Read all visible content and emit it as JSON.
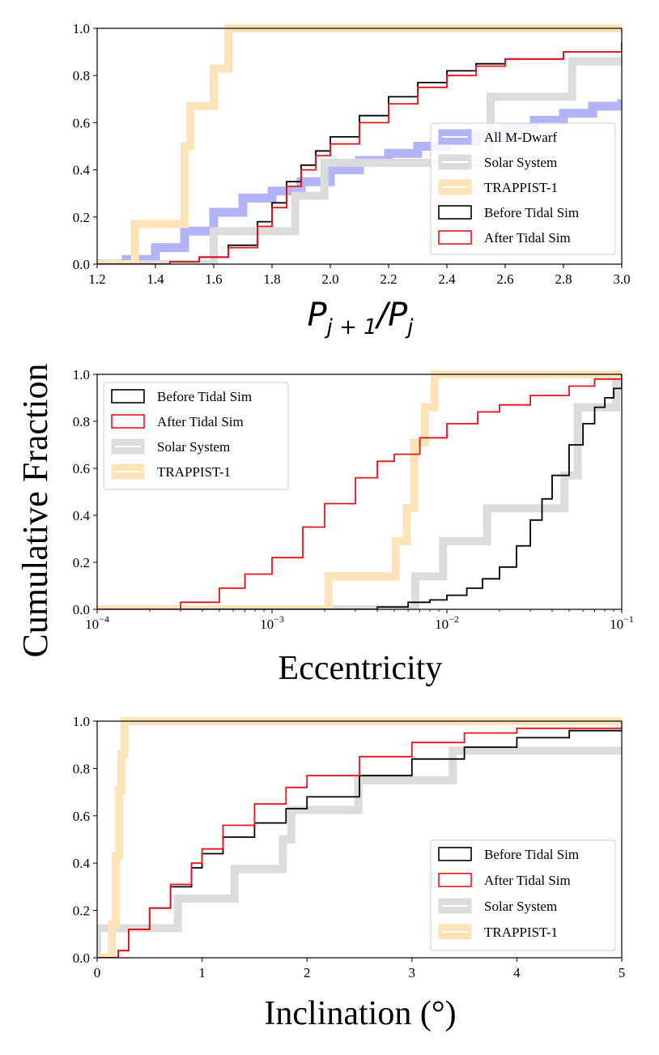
{
  "figure": {
    "ylabel": "Cumulative Fraction"
  },
  "colors": {
    "before": "#000000",
    "after": "#e8141c",
    "solar": "#dcdcdc",
    "trappist": "#fde4b8",
    "mdwarf": "#b3b3f7"
  },
  "chart_data": [
    {
      "type": "step_cdf",
      "title": "",
      "xlabel_parts": {
        "p": "P",
        "sub1": "j + 1",
        "slash": "/",
        "sub2": "j"
      },
      "xscale": "linear",
      "xlim": [
        1.2,
        3.0
      ],
      "ylim": [
        0,
        1.0
      ],
      "xticks": [
        1.2,
        1.4,
        1.6,
        1.8,
        2.0,
        2.2,
        2.4,
        2.6,
        2.8,
        3.0
      ],
      "xtick_labels": [
        "1.2",
        "1.4",
        "1.6",
        "1.8",
        "2.0",
        "2.2",
        "2.4",
        "2.6",
        "2.8",
        "3.0"
      ],
      "yticks": [
        0,
        0.2,
        0.4,
        0.6,
        0.8,
        1.0
      ],
      "ytick_labels": [
        "0.0",
        "0.2",
        "0.4",
        "0.6",
        "0.8",
        "1.0"
      ],
      "legend_position": "lower-right",
      "legend": [
        {
          "key": "mdwarf",
          "label": "All M-Dwarf"
        },
        {
          "key": "solar",
          "label": "Solar System"
        },
        {
          "key": "trappist",
          "label": "TRAPPIST-1"
        },
        {
          "key": "before",
          "label": "Before Tidal Sim"
        },
        {
          "key": "after",
          "label": "After Tidal Sim"
        }
      ],
      "series": [
        {
          "key": "mdwarf",
          "name": "All M-Dwarf",
          "style": "band",
          "x": [
            1.2,
            1.3,
            1.4,
            1.5,
            1.6,
            1.7,
            1.8,
            1.9,
            2.0,
            2.1,
            2.2,
            2.3,
            2.4,
            2.5,
            2.6,
            2.7,
            2.8,
            2.9,
            3.0
          ],
          "y": [
            0.0,
            0.02,
            0.07,
            0.14,
            0.22,
            0.28,
            0.31,
            0.35,
            0.4,
            0.44,
            0.47,
            0.5,
            0.52,
            0.55,
            0.58,
            0.61,
            0.64,
            0.67,
            0.7
          ]
        },
        {
          "key": "solar",
          "name": "Solar System",
          "style": "thick",
          "x": [
            1.2,
            1.6,
            1.6,
            1.88,
            1.88,
            1.98,
            1.98,
            2.55,
            2.55,
            2.83,
            2.83,
            3.0
          ],
          "y": [
            0.0,
            0.0,
            0.14,
            0.14,
            0.29,
            0.29,
            0.43,
            0.43,
            0.71,
            0.71,
            0.86,
            0.86
          ]
        },
        {
          "key": "trappist",
          "name": "TRAPPIST-1",
          "style": "thick",
          "x": [
            1.2,
            1.33,
            1.33,
            1.5,
            1.5,
            1.52,
            1.52,
            1.6,
            1.6,
            1.65,
            1.65,
            3.0
          ],
          "y": [
            0.0,
            0.0,
            0.17,
            0.17,
            0.5,
            0.5,
            0.67,
            0.67,
            0.83,
            0.83,
            1.0,
            1.0
          ]
        },
        {
          "key": "before",
          "name": "Before Tidal Sim",
          "style": "thin",
          "x": [
            1.2,
            1.45,
            1.55,
            1.65,
            1.75,
            1.8,
            1.85,
            1.9,
            1.95,
            2.0,
            2.1,
            2.2,
            2.3,
            2.4,
            2.5,
            2.6,
            2.8,
            3.0
          ],
          "y": [
            0.0,
            0.01,
            0.03,
            0.08,
            0.18,
            0.26,
            0.35,
            0.42,
            0.48,
            0.54,
            0.63,
            0.71,
            0.77,
            0.82,
            0.85,
            0.87,
            0.9,
            0.94
          ]
        },
        {
          "key": "after",
          "name": "After Tidal Sim",
          "style": "thin",
          "x": [
            1.2,
            1.45,
            1.55,
            1.65,
            1.75,
            1.8,
            1.85,
            1.9,
            1.95,
            2.0,
            2.1,
            2.2,
            2.3,
            2.4,
            2.5,
            2.6,
            2.8,
            3.0
          ],
          "y": [
            0.0,
            0.01,
            0.03,
            0.07,
            0.16,
            0.24,
            0.33,
            0.4,
            0.46,
            0.51,
            0.6,
            0.68,
            0.75,
            0.8,
            0.84,
            0.87,
            0.9,
            0.93
          ]
        }
      ]
    },
    {
      "type": "step_cdf",
      "title": "",
      "xlabel": "Eccentricity",
      "xscale": "log",
      "xlim": [
        0.0001,
        0.1
      ],
      "ylim": [
        0,
        1.0
      ],
      "xticks": [
        0.0001,
        0.001,
        0.01,
        0.1
      ],
      "xtick_labels": [
        {
          "base": "10",
          "exp": "−4"
        },
        {
          "base": "10",
          "exp": "−3"
        },
        {
          "base": "10",
          "exp": "−2"
        },
        {
          "base": "10",
          "exp": "−1"
        }
      ],
      "yticks": [
        0,
        0.2,
        0.4,
        0.6,
        0.8,
        1.0
      ],
      "ytick_labels": [
        "0.0",
        "0.2",
        "0.4",
        "0.6",
        "0.8",
        "1.0"
      ],
      "legend_position": "upper-left",
      "legend": [
        {
          "key": "before",
          "label": "Before Tidal Sim"
        },
        {
          "key": "after",
          "label": "After Tidal Sim"
        },
        {
          "key": "solar",
          "label": "Solar System"
        },
        {
          "key": "trappist",
          "label": "TRAPPIST-1"
        }
      ],
      "series": [
        {
          "key": "solar",
          "name": "Solar System",
          "style": "thick",
          "x": [
            0.0001,
            0.0066,
            0.0066,
            0.0095,
            0.0095,
            0.017,
            0.017,
            0.047,
            0.047,
            0.056,
            0.056,
            0.093,
            0.093,
            0.1
          ],
          "y": [
            0.0,
            0.0,
            0.14,
            0.14,
            0.29,
            0.29,
            0.43,
            0.43,
            0.57,
            0.57,
            0.86,
            0.86,
            1.0,
            1.0
          ]
        },
        {
          "key": "trappist",
          "name": "TRAPPIST-1",
          "style": "thick",
          "x": [
            0.0001,
            0.0021,
            0.0021,
            0.0051,
            0.0051,
            0.0059,
            0.0059,
            0.0065,
            0.0065,
            0.0075,
            0.0075,
            0.0085,
            0.0085,
            0.1
          ],
          "y": [
            0.0,
            0.0,
            0.14,
            0.14,
            0.29,
            0.29,
            0.43,
            0.43,
            0.71,
            0.71,
            0.86,
            0.86,
            1.0,
            1.0
          ]
        },
        {
          "key": "before",
          "name": "Before Tidal Sim",
          "style": "thin",
          "x": [
            0.0001,
            0.002,
            0.004,
            0.006,
            0.008,
            0.01,
            0.013,
            0.016,
            0.02,
            0.025,
            0.03,
            0.035,
            0.04,
            0.05,
            0.06,
            0.07,
            0.08,
            0.09,
            0.1
          ],
          "y": [
            0.0,
            0.0,
            0.01,
            0.03,
            0.04,
            0.06,
            0.09,
            0.13,
            0.18,
            0.27,
            0.38,
            0.47,
            0.57,
            0.7,
            0.79,
            0.86,
            0.9,
            0.94,
            0.98
          ]
        },
        {
          "key": "after",
          "name": "After Tidal Sim",
          "style": "thin",
          "x": [
            0.0001,
            0.0002,
            0.0003,
            0.0005,
            0.0007,
            0.001,
            0.0015,
            0.002,
            0.003,
            0.004,
            0.005,
            0.007,
            0.01,
            0.015,
            0.02,
            0.03,
            0.05,
            0.07,
            0.1
          ],
          "y": [
            0.0,
            0.0,
            0.03,
            0.09,
            0.15,
            0.22,
            0.35,
            0.45,
            0.56,
            0.63,
            0.66,
            0.73,
            0.79,
            0.84,
            0.87,
            0.91,
            0.95,
            0.98,
            1.0
          ]
        }
      ]
    },
    {
      "type": "step_cdf",
      "title": "",
      "xlabel": "Inclination (°)",
      "xscale": "linear",
      "xlim": [
        0,
        5
      ],
      "ylim": [
        0,
        1.0
      ],
      "xticks": [
        0,
        1,
        2,
        3,
        4,
        5
      ],
      "xtick_labels": [
        "0",
        "1",
        "2",
        "3",
        "4",
        "5"
      ],
      "yticks": [
        0,
        0.2,
        0.4,
        0.6,
        0.8,
        1.0
      ],
      "ytick_labels": [
        "0.0",
        "0.2",
        "0.4",
        "0.6",
        "0.8",
        "1.0"
      ],
      "legend_position": "lower-right",
      "legend": [
        {
          "key": "before",
          "label": "Before Tidal Sim"
        },
        {
          "key": "after",
          "label": "After Tidal Sim"
        },
        {
          "key": "solar",
          "label": "Solar System"
        },
        {
          "key": "trappist",
          "label": "TRAPPIST-1"
        }
      ],
      "series": [
        {
          "key": "solar",
          "name": "Solar System",
          "style": "thick",
          "x": [
            0,
            0.0,
            0.0,
            0.77,
            0.77,
            1.31,
            1.31,
            1.77,
            1.77,
            1.85,
            1.85,
            2.49,
            2.49,
            3.39,
            3.39,
            5.0
          ],
          "y": [
            0.0,
            0.0,
            0.125,
            0.125,
            0.25,
            0.25,
            0.375,
            0.375,
            0.5,
            0.5,
            0.625,
            0.625,
            0.75,
            0.75,
            0.875,
            0.875
          ]
        },
        {
          "key": "trappist",
          "name": "TRAPPIST-1",
          "style": "thick",
          "x": [
            0,
            0.14,
            0.14,
            0.18,
            0.18,
            0.21,
            0.21,
            0.23,
            0.23,
            0.26,
            0.26,
            0.29,
            0.29,
            5.0
          ],
          "y": [
            0.0,
            0.0,
            0.14,
            0.14,
            0.43,
            0.43,
            0.71,
            0.71,
            0.86,
            0.86,
            1.0,
            1.0,
            1.0,
            1.0
          ]
        },
        {
          "key": "before",
          "name": "Before Tidal Sim",
          "style": "thin",
          "x": [
            0,
            0.2,
            0.3,
            0.5,
            0.7,
            0.9,
            1.0,
            1.2,
            1.5,
            1.8,
            2.0,
            2.5,
            3.0,
            3.5,
            4.0,
            4.5,
            5.0
          ],
          "y": [
            0.0,
            0.03,
            0.12,
            0.21,
            0.3,
            0.38,
            0.44,
            0.51,
            0.57,
            0.63,
            0.68,
            0.77,
            0.84,
            0.89,
            0.93,
            0.96,
            0.97
          ]
        },
        {
          "key": "after",
          "name": "After Tidal Sim",
          "style": "thin",
          "x": [
            0,
            0.2,
            0.3,
            0.5,
            0.7,
            0.9,
            1.0,
            1.2,
            1.5,
            1.8,
            2.0,
            2.5,
            3.0,
            3.5,
            4.0,
            4.5,
            5.0
          ],
          "y": [
            0.0,
            0.03,
            0.12,
            0.21,
            0.31,
            0.4,
            0.46,
            0.56,
            0.65,
            0.72,
            0.77,
            0.85,
            0.91,
            0.95,
            0.97,
            0.97,
            0.98
          ]
        }
      ]
    }
  ]
}
